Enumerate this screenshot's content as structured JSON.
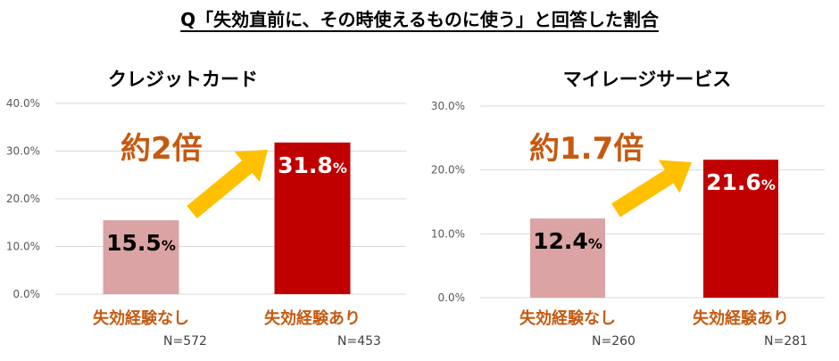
{
  "title": "Q「失効直前に、その時使えるものに使う」と回答した割合",
  "accent_colors": {
    "bar_no_lapse": "#dba3a3",
    "bar_lapse": "#c00000",
    "label_orange": "#c55a11",
    "arrow": "#ffc000",
    "multiplier_text": "#c55a11"
  },
  "chart_data": [
    {
      "type": "bar",
      "title": "クレジットカード",
      "categories": [
        "失効経験なし",
        "失効経験あり"
      ],
      "sample_sizes": [
        "N=572",
        "N=453"
      ],
      "values": [
        15.5,
        31.8
      ],
      "value_labels": [
        "15.5",
        "31.8"
      ],
      "value_unit": "%",
      "ylim": [
        0,
        40
      ],
      "yticks": [
        "0.0%",
        "10.0%",
        "20.0%",
        "30.0%",
        "40.0%"
      ],
      "ytick_values": [
        0,
        10,
        20,
        30,
        40
      ],
      "multiplier_label": "約2倍",
      "grid": true
    },
    {
      "type": "bar",
      "title": "マイレージサービス",
      "categories": [
        "失効経験なし",
        "失効経験あり"
      ],
      "sample_sizes": [
        "N=260",
        "N=281"
      ],
      "values": [
        12.4,
        21.6
      ],
      "value_labels": [
        "12.4",
        "21.6"
      ],
      "value_unit": "%",
      "ylim": [
        0,
        30
      ],
      "yticks": [
        "0.0%",
        "10.0%",
        "20.0%",
        "30.0%"
      ],
      "ytick_values": [
        0,
        10,
        20,
        30
      ],
      "multiplier_label": "約1.7倍",
      "grid": true
    }
  ]
}
